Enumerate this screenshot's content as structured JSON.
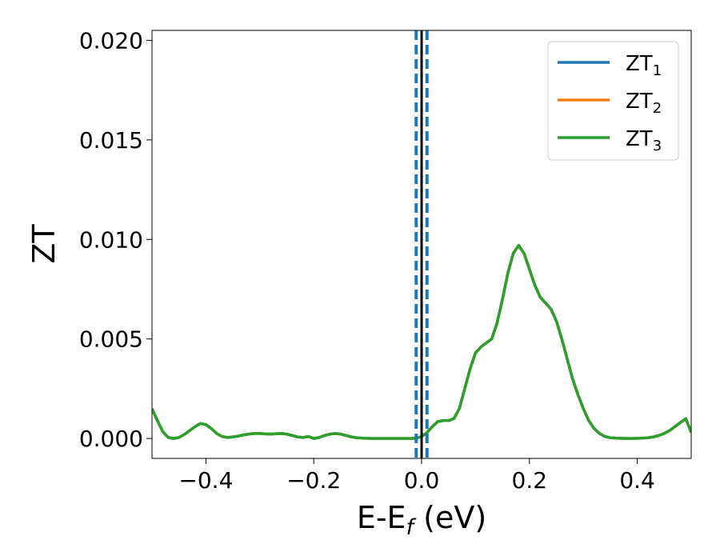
{
  "chart_data": {
    "type": "line",
    "xlabel": {
      "main": "E-E",
      "sub": "f",
      "suffix": " (eV)"
    },
    "ylabel": "ZT",
    "xlim": [
      -0.5,
      0.5
    ],
    "ylim": [
      -0.001,
      0.0205
    ],
    "x_ticks": [
      -0.4,
      -0.2,
      0.0,
      0.2,
      0.4
    ],
    "x_tick_labels": [
      "−0.4",
      "−0.2",
      "0.0",
      "0.2",
      "0.4"
    ],
    "y_ticks": [
      0.0,
      0.005,
      0.01,
      0.015,
      0.02
    ],
    "y_tick_labels": [
      "0.000",
      "0.005",
      "0.010",
      "0.015",
      "0.020"
    ],
    "legend_position": "top-right",
    "grid": false,
    "vlines": [
      {
        "x": 0.0,
        "style": "solid",
        "color": "#000000"
      },
      {
        "x": -0.01,
        "style": "dashed",
        "color": "#1f77b4"
      },
      {
        "x": 0.01,
        "style": "dashed",
        "color": "#1f77b4"
      }
    ],
    "series": [
      {
        "name": "ZT",
        "sub": "1",
        "color": "#1f77b4"
      },
      {
        "name": "ZT",
        "sub": "2",
        "color": "#ff7f0e"
      },
      {
        "name": "ZT",
        "sub": "3",
        "color": "#2ca02c"
      }
    ],
    "x": [
      -0.5,
      -0.49,
      -0.48,
      -0.47,
      -0.46,
      -0.45,
      -0.44,
      -0.43,
      -0.42,
      -0.41,
      -0.4,
      -0.39,
      -0.38,
      -0.37,
      -0.36,
      -0.35,
      -0.34,
      -0.33,
      -0.32,
      -0.31,
      -0.3,
      -0.29,
      -0.28,
      -0.27,
      -0.26,
      -0.25,
      -0.24,
      -0.23,
      -0.22,
      -0.21,
      -0.2,
      -0.19,
      -0.18,
      -0.17,
      -0.16,
      -0.15,
      -0.14,
      -0.13,
      -0.12,
      -0.11,
      -0.1,
      -0.09,
      -0.08,
      -0.07,
      -0.06,
      -0.05,
      -0.04,
      -0.03,
      -0.02,
      -0.01,
      0.0,
      0.01,
      0.02,
      0.03,
      0.04,
      0.05,
      0.06,
      0.07,
      0.08,
      0.09,
      0.1,
      0.11,
      0.12,
      0.13,
      0.14,
      0.15,
      0.16,
      0.17,
      0.18,
      0.19,
      0.2,
      0.21,
      0.22,
      0.23,
      0.24,
      0.25,
      0.26,
      0.27,
      0.28,
      0.29,
      0.3,
      0.31,
      0.32,
      0.33,
      0.34,
      0.35,
      0.36,
      0.37,
      0.38,
      0.39,
      0.4,
      0.41,
      0.42,
      0.43,
      0.44,
      0.45,
      0.46,
      0.47,
      0.48,
      0.49,
      0.5
    ],
    "y": [
      0.0015,
      0.0009,
      0.00035,
      5e-05,
      0.0,
      5e-05,
      0.0002,
      0.0004,
      0.0006,
      0.00075,
      0.0007,
      0.0005,
      0.00025,
      0.0001,
      5e-05,
      8e-05,
      0.00012,
      0.00018,
      0.00022,
      0.00025,
      0.00025,
      0.00023,
      0.00022,
      0.00024,
      0.00025,
      0.00022,
      0.00015,
      8e-05,
      5e-05,
      0.0001,
      0.0,
      5e-05,
      0.00015,
      0.00022,
      0.00025,
      0.00022,
      0.00015,
      8e-05,
      4e-05,
      2e-05,
      1e-05,
      0.0,
      0.0,
      0.0,
      0.0,
      0.0,
      0.0,
      0.0,
      0.0,
      2e-05,
      0.0001,
      0.0003,
      0.0006,
      0.00085,
      0.0009,
      0.0009,
      0.001,
      0.0015,
      0.0025,
      0.0035,
      0.0043,
      0.0046,
      0.0048,
      0.005,
      0.0058,
      0.007,
      0.0083,
      0.0093,
      0.0097,
      0.0093,
      0.0085,
      0.0077,
      0.0071,
      0.0068,
      0.0065,
      0.0059,
      0.005,
      0.004,
      0.003,
      0.0022,
      0.0015,
      0.0009,
      0.0005,
      0.00025,
      0.0001,
      4e-05,
      2e-05,
      1e-05,
      0.0,
      0.0,
      1e-05,
      2e-05,
      4e-05,
      8e-05,
      0.00015,
      0.00025,
      0.0004,
      0.0006,
      0.0008,
      0.001,
      0.0003
    ]
  }
}
